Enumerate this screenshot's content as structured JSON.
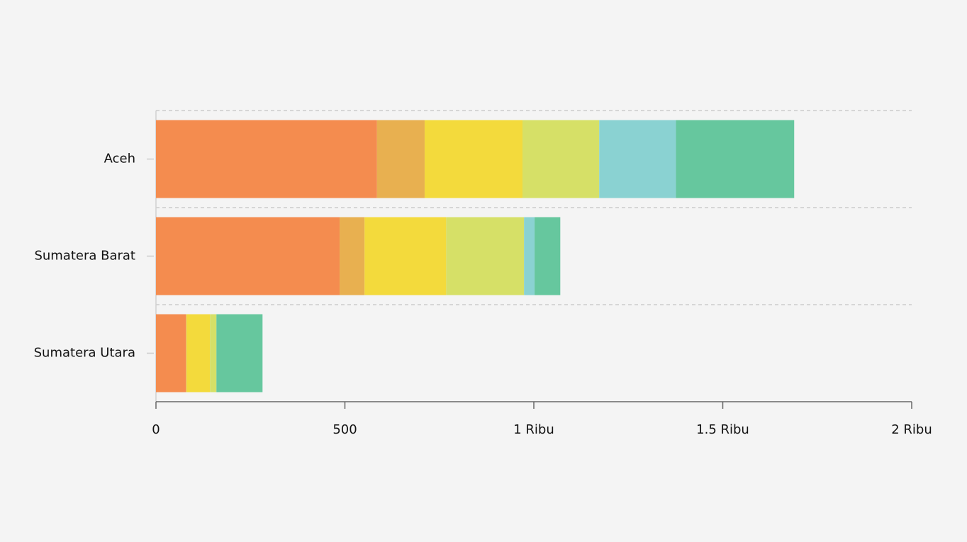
{
  "chart_data": {
    "type": "stacked-bar-horizontal",
    "categories": [
      "Aceh",
      "Sumatera Barat",
      "Sumatera Utara"
    ],
    "series": [
      {
        "color": "#f48c4f",
        "values": [
          585,
          486,
          79
        ]
      },
      {
        "color": "#e8b050",
        "values": [
          126,
          66,
          2
        ]
      },
      {
        "color": "#f3da3c",
        "values": [
          259,
          216,
          62
        ]
      },
      {
        "color": "#d6e067",
        "values": [
          203,
          206,
          17
        ]
      },
      {
        "color": "#8ad2d2",
        "values": [
          203,
          28,
          0
        ]
      },
      {
        "color": "#66c79e",
        "values": [
          313,
          68,
          122
        ]
      }
    ],
    "xlim": [
      0,
      2000
    ],
    "xticks": [
      0,
      500,
      {
        "value": 1000,
        "label": "1 Ribu"
      },
      {
        "value": 1500,
        "label": "1.5 Ribu"
      },
      {
        "value": 2000,
        "label": "2 Ribu"
      }
    ],
    "grid": true
  }
}
